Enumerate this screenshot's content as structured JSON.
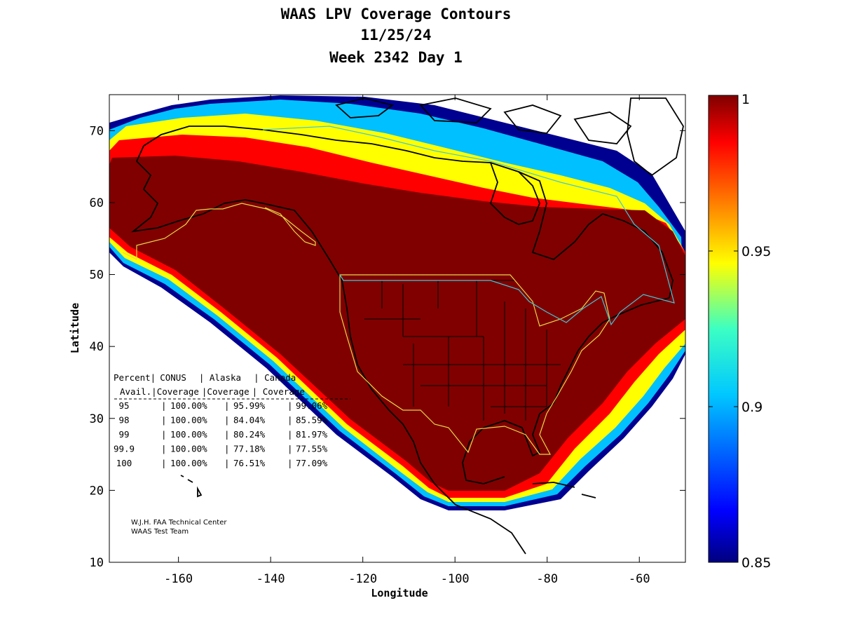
{
  "title": {
    "line1": "WAAS LPV Coverage Contours",
    "line2": "11/25/24",
    "line3": "Week 2342 Day 1"
  },
  "chart_data": {
    "type": "heatmap",
    "xlabel": "Longitude",
    "ylabel": "Latitude",
    "xlim": [
      -175,
      -50
    ],
    "ylim": [
      10,
      75
    ],
    "x_ticks": [
      -160,
      -140,
      -120,
      -100,
      -80,
      -60
    ],
    "y_ticks": [
      10,
      20,
      30,
      40,
      50,
      60,
      70
    ],
    "colorbar": {
      "min": 0.85,
      "max": 1,
      "ticks": [
        {
          "value": 1,
          "label": "1"
        },
        {
          "value": 0.95,
          "label": "0.95"
        },
        {
          "value": 0.9,
          "label": "0.9"
        },
        {
          "value": 0.85,
          "label": "0.85"
        }
      ],
      "colormap": "jet"
    },
    "colors": {
      "full_coverage": "#800000",
      "map_lines": "#000000",
      "conus_alaska_boundary": "#e8d84a",
      "canada_boundary": "#40c8d8"
    },
    "table": {
      "header1": [
        "Percent|",
        "CONUS",
        "| Alaska",
        "| Canada"
      ],
      "header2": [
        "Avail.|",
        "Coverage",
        "|Coverage",
        "| Coverage"
      ],
      "rows": [
        {
          "percent": "95",
          "conus": "100.00%",
          "alaska": "95.99%",
          "canada": "99.06%"
        },
        {
          "percent": "98",
          "conus": "100.00%",
          "alaska": "84.04%",
          "canada": "85.59%"
        },
        {
          "percent": "99",
          "conus": "100.00%",
          "alaska": "80.24%",
          "canada": "81.97%"
        },
        {
          "percent": "99.9",
          "conus": "100.00%",
          "alaska": "77.18%",
          "canada": "77.55%"
        },
        {
          "percent": "100",
          "conus": "100.00%",
          "alaska": "76.51%",
          "canada": "77.09%"
        }
      ]
    },
    "credit": {
      "line1": "W.J.H. FAA Technical Center",
      "line2": "WAAS Test Team"
    }
  }
}
